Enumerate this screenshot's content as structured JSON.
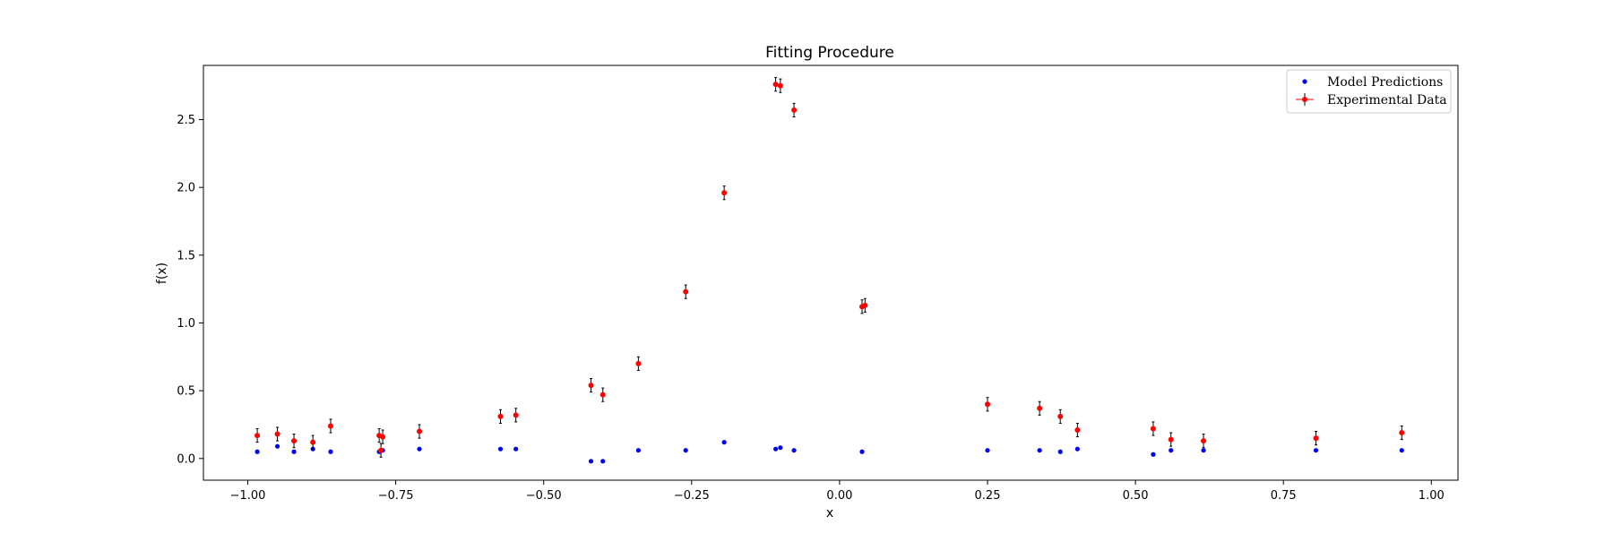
{
  "chart_data": {
    "type": "scatter",
    "title": "Fitting Procedure",
    "xlabel": "x",
    "ylabel": "f(x)",
    "xlim": [
      -1.075,
      1.045
    ],
    "ylim": [
      -0.16,
      2.9
    ],
    "xticks": [
      -1.0,
      -0.75,
      -0.5,
      -0.25,
      0.0,
      0.25,
      0.5,
      0.75,
      1.0
    ],
    "xtick_labels": [
      "−1.00",
      "−0.75",
      "−0.50",
      "−0.25",
      "0.00",
      "0.25",
      "0.50",
      "0.75",
      "1.00"
    ],
    "yticks": [
      0.0,
      0.5,
      1.0,
      1.5,
      2.0,
      2.5
    ],
    "ytick_labels": [
      "0.0",
      "0.5",
      "1.0",
      "1.5",
      "2.0",
      "2.5"
    ],
    "grid": false,
    "legend_position": "top-right",
    "series": [
      {
        "name": "Model Predictions",
        "color": "#0000ff",
        "marker": "dot",
        "x": [
          -0.984,
          -0.95,
          -0.922,
          -0.89,
          -0.86,
          -0.778,
          -0.772,
          -0.71,
          -0.573,
          -0.547,
          -0.42,
          -0.4,
          -0.34,
          -0.26,
          -0.195,
          -0.108,
          -0.1,
          -0.077,
          0.038,
          0.25,
          0.338,
          0.373,
          0.402,
          0.53,
          0.56,
          0.615,
          0.805,
          0.95
        ],
        "y": [
          0.05,
          0.09,
          0.05,
          0.07,
          0.05,
          0.05,
          0.06,
          0.07,
          0.07,
          0.07,
          -0.02,
          -0.02,
          0.06,
          0.06,
          0.12,
          0.07,
          0.08,
          0.06,
          0.05,
          0.06,
          0.06,
          0.05,
          0.07,
          0.03,
          0.06,
          0.06,
          0.06,
          0.06
        ]
      },
      {
        "name": "Experimental Data",
        "color": "#ff0000",
        "marker": "dot-errorbar",
        "x": [
          -0.984,
          -0.95,
          -0.922,
          -0.89,
          -0.86,
          -0.778,
          -0.772,
          -0.775,
          -0.71,
          -0.573,
          -0.547,
          -0.42,
          -0.4,
          -0.34,
          -0.26,
          -0.195,
          -0.108,
          -0.1,
          -0.077,
          0.038,
          0.043,
          0.25,
          0.338,
          0.373,
          0.402,
          0.53,
          0.56,
          0.615,
          0.805,
          0.95
        ],
        "y": [
          0.17,
          0.18,
          0.13,
          0.12,
          0.24,
          0.17,
          0.16,
          0.06,
          0.2,
          0.31,
          0.32,
          0.54,
          0.47,
          0.7,
          1.23,
          1.96,
          2.76,
          2.75,
          2.57,
          1.12,
          1.13,
          0.4,
          0.37,
          0.31,
          0.21,
          0.22,
          0.14,
          0.13,
          0.15,
          0.19
        ],
        "yerr": 0.05
      }
    ]
  }
}
